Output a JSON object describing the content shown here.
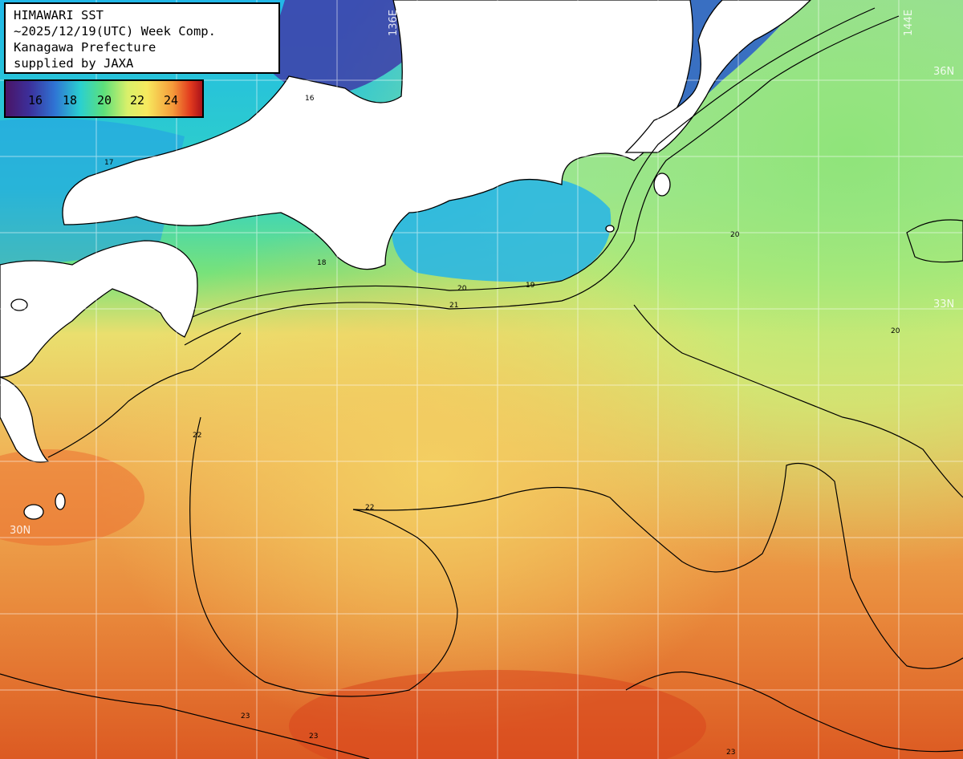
{
  "title_lines": [
    "HIMAWARI SST",
    "~2025/12/19(UTC) Week Comp.",
    "Kanagawa Prefecture",
    "supplied by JAXA"
  ],
  "legend": {
    "ticks": [
      "16",
      "18",
      "20",
      "22",
      "24"
    ],
    "colors": [
      "#4a1466",
      "#2f74d4",
      "#2ad0d0",
      "#5ee07a",
      "#f7e95e",
      "#f59a3a",
      "#a8121a"
    ]
  },
  "grid_labels": {
    "lon_136": "136E",
    "lon_144": "144E",
    "lat_36": "36N",
    "lat_33": "33N",
    "lat_30": "30N"
  },
  "contour_labels": [
    "16",
    "17",
    "18",
    "19",
    "20",
    "21",
    "22",
    "23"
  ],
  "colors": {
    "land": "#ffffff",
    "cold_water": "#3a2a8a",
    "cool_water": "#2fb0e0",
    "mild_water": "#7ee37a",
    "warm_water": "#f2e070",
    "hot_water": "#e8893a",
    "hottest_water": "#d9461e"
  }
}
